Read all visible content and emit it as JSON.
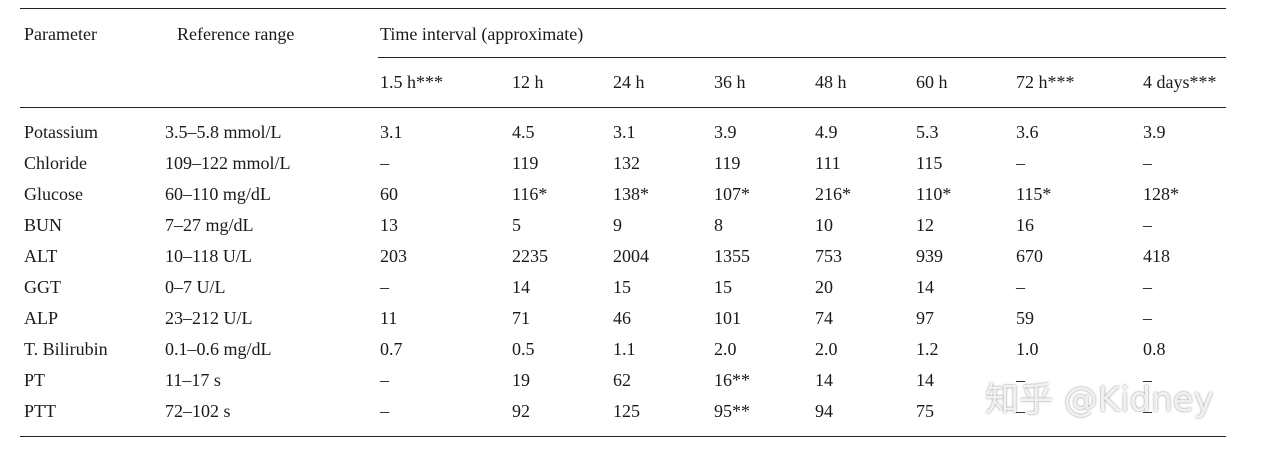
{
  "table": {
    "header": {
      "parameter": "Parameter",
      "reference": "Reference range",
      "time_interval": "Time interval (approximate)",
      "times": [
        "1.5 h***",
        "12 h",
        "24 h",
        "36 h",
        "48 h",
        "60 h",
        "72 h***",
        "4 days***"
      ]
    },
    "rows": [
      [
        "Potassium",
        "3.5–5.8 mmol/L",
        "3.1",
        "4.5",
        "3.1",
        "3.9",
        "4.9",
        "5.3",
        "3.6",
        "3.9"
      ],
      [
        "Chloride",
        "109–122 mmol/L",
        "–",
        "119",
        "132",
        "119",
        "111",
        "115",
        "–",
        "–"
      ],
      [
        "Glucose",
        "60–110 mg/dL",
        "60",
        "116*",
        "138*",
        "107*",
        "216*",
        "110*",
        "115*",
        "128*"
      ],
      [
        "BUN",
        "7–27 mg/dL",
        "13",
        "5",
        "9",
        "8",
        "10",
        "12",
        "16",
        "–"
      ],
      [
        "ALT",
        "10–118 U/L",
        "203",
        "2235",
        "2004",
        "1355",
        "753",
        "939",
        "670",
        "418"
      ],
      [
        "GGT",
        "0–7 U/L",
        "–",
        "14",
        "15",
        "15",
        "20",
        "14",
        "–",
        "–"
      ],
      [
        "ALP",
        "23–212 U/L",
        "11",
        "71",
        "46",
        "101",
        "74",
        "97",
        "59",
        "–"
      ],
      [
        "T. Bilirubin",
        "0.1–0.6 mg/dL",
        "0.7",
        "0.5",
        "1.1",
        "2.0",
        "2.0",
        "1.2",
        "1.0",
        "0.8"
      ],
      [
        "PT",
        "11–17 s",
        "–",
        "19",
        "62",
        "16**",
        "14",
        "14",
        "–",
        "–"
      ],
      [
        "PTT",
        "72–102 s",
        "–",
        "92",
        "125",
        "95**",
        "94",
        "75",
        "–",
        "–"
      ]
    ]
  },
  "watermark": "知乎 @Kidney"
}
